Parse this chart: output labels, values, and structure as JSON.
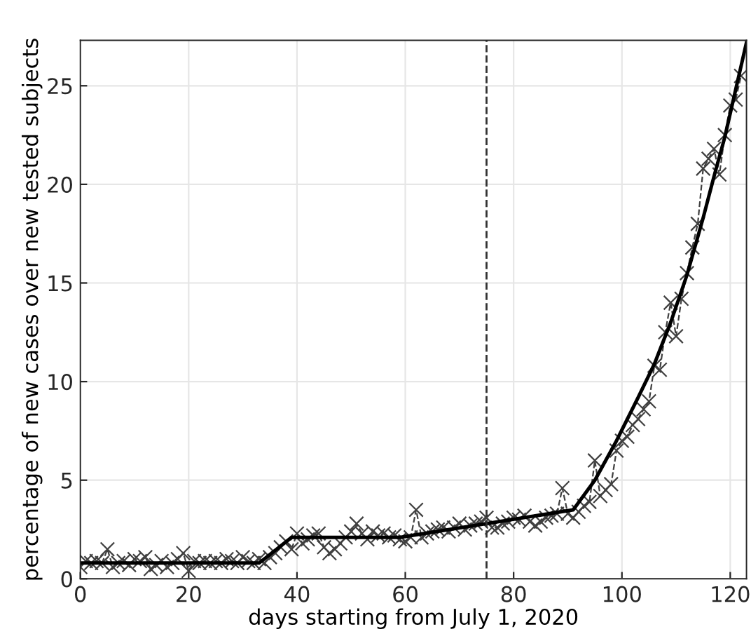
{
  "chart_data": {
    "type": "line",
    "xlabel": "days starting from July 1, 2020",
    "ylabel": "percentage of new cases over new tested subjects",
    "xlim": [
      0,
      123
    ],
    "ylim": [
      0,
      27.3
    ],
    "xticks": [
      0,
      20,
      40,
      60,
      80,
      100,
      120
    ],
    "yticks": [
      0,
      5,
      10,
      15,
      20,
      25
    ],
    "grid": true,
    "ref_lines": [
      {
        "axis": "x",
        "value": 75,
        "label": null,
        "color": "#333333",
        "line_style": "dashed"
      }
    ],
    "series": [
      {
        "color": "#404040",
        "marker": "cross",
        "line_style": "dashed",
        "x": [
          0,
          1,
          2,
          3,
          4,
          5,
          6,
          7,
          8,
          9,
          10,
          11,
          12,
          13,
          14,
          15,
          16,
          17,
          18,
          19,
          20,
          21,
          22,
          23,
          24,
          25,
          26,
          27,
          28,
          29,
          30,
          31,
          32,
          33,
          34,
          35,
          36,
          37,
          38,
          39,
          40,
          41,
          42,
          43,
          44,
          45,
          46,
          47,
          48,
          49,
          50,
          51,
          52,
          53,
          54,
          55,
          56,
          57,
          58,
          59,
          60,
          61,
          62,
          63,
          64,
          65,
          66,
          67,
          68,
          69,
          70,
          71,
          72,
          73,
          74,
          75,
          76,
          77,
          78,
          79,
          80,
          81,
          82,
          83,
          84,
          85,
          86,
          87,
          88,
          89,
          90,
          91,
          92,
          93,
          94,
          95,
          96,
          97,
          98,
          99,
          100,
          101,
          102,
          103,
          104,
          105,
          106,
          107,
          108,
          109,
          110,
          111,
          112,
          113,
          114,
          115,
          116,
          117,
          118,
          119,
          120,
          121,
          122
        ],
        "values": [
          0.6,
          0.9,
          0.8,
          0.9,
          0.8,
          1.5,
          0.6,
          0.8,
          0.9,
          0.7,
          1.0,
          0.9,
          1.1,
          0.5,
          0.7,
          0.9,
          0.6,
          0.8,
          1.0,
          1.3,
          0.4,
          0.9,
          0.8,
          0.9,
          0.8,
          0.9,
          0.8,
          1.0,
          0.9,
          0.8,
          1.1,
          0.9,
          0.8,
          1.0,
          0.8,
          1.1,
          1.3,
          1.6,
          1.9,
          1.5,
          2.3,
          1.8,
          2.0,
          2.2,
          2.3,
          1.6,
          1.3,
          1.5,
          1.8,
          2.1,
          2.4,
          2.8,
          2.3,
          2.0,
          2.4,
          2.2,
          2.3,
          2.1,
          2.2,
          2.0,
          1.9,
          2.1,
          3.5,
          2.1,
          2.3,
          2.4,
          2.5,
          2.6,
          2.4,
          2.6,
          2.8,
          2.5,
          2.7,
          2.8,
          2.9,
          3.1,
          2.6,
          2.6,
          2.8,
          2.9,
          3.1,
          3.0,
          3.2,
          2.9,
          2.7,
          2.9,
          3.1,
          3.2,
          3.3,
          4.6,
          3.3,
          3.1,
          3.4,
          3.7,
          3.9,
          6.0,
          4.2,
          4.5,
          4.8,
          6.5,
          7.0,
          7.2,
          7.8,
          8.1,
          8.6,
          9.0,
          10.8,
          10.6,
          12.5,
          14.0,
          12.3,
          14.2,
          15.5,
          16.8,
          18.0,
          20.8,
          21.3,
          21.8,
          20.5,
          22.5,
          24.0,
          24.3,
          25.5
        ]
      },
      {
        "color": "#000000",
        "marker": "none",
        "line_style": "solid",
        "x": [
          0,
          33,
          39,
          59,
          91,
          95,
          99,
          103,
          106,
          109,
          112,
          115,
          117,
          119,
          121,
          123
        ],
        "values": [
          0.8,
          0.8,
          2.1,
          2.1,
          3.5,
          5.0,
          7.0,
          9.2,
          10.9,
          13.0,
          15.4,
          18.3,
          20.4,
          22.4,
          24.8,
          27.2
        ]
      }
    ]
  }
}
